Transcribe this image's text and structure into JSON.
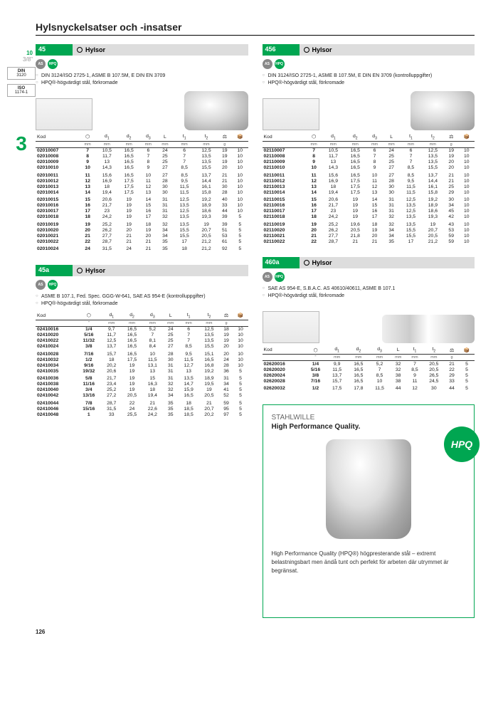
{
  "page_title": "Hylsnyckelsatser och -insatser",
  "page_number": "126",
  "sidebar": {
    "size1": "10",
    "size2": "3/8\"",
    "din": "DIN",
    "din_val": "3120",
    "iso": "ISO",
    "iso_val": "1174-1",
    "section": "3"
  },
  "blocks": [
    {
      "num": "45",
      "title": "Hylsor",
      "badges": [
        "AS",
        "HPQ"
      ],
      "specs": [
        "DIN 3124/ISO 2725-1, ASME B 107.5M, E DIN EN 3709",
        "HPQ®-högvärdigt stål, förkromade"
      ],
      "unit": "mm",
      "img": "short",
      "rows": [
        [
          "02010007",
          "7",
          "10,5",
          "16,5",
          "6",
          "24",
          "6",
          "12,5",
          "19",
          "10"
        ],
        [
          "02010008",
          "8",
          "11,7",
          "16,5",
          "7",
          "25",
          "7",
          "13,5",
          "19",
          "10"
        ],
        [
          "02010009",
          "9",
          "13",
          "16,5",
          "8",
          "25",
          "7",
          "13,5",
          "19",
          "10"
        ],
        [
          "02010010",
          "10",
          "14,3",
          "16,5",
          "9",
          "27",
          "8,5",
          "15,5",
          "20",
          "10"
        ],
        [
          "!02010011",
          "11",
          "15,6",
          "16,5",
          "10",
          "27",
          "8,5",
          "13,7",
          "21",
          "10"
        ],
        [
          "02010012",
          "12",
          "16,9",
          "17,5",
          "11",
          "28",
          "9,5",
          "14,4",
          "21",
          "10"
        ],
        [
          "02010013",
          "13",
          "18",
          "17,5",
          "12",
          "30",
          "11,5",
          "16,1",
          "30",
          "10"
        ],
        [
          "02010014",
          "14",
          "19,4",
          "17,5",
          "13",
          "30",
          "11,5",
          "15,8",
          "28",
          "10"
        ],
        [
          "!02010015",
          "15",
          "20,6",
          "19",
          "14",
          "31",
          "12,5",
          "19,2",
          "40",
          "10"
        ],
        [
          "02010016",
          "16",
          "21,7",
          "19",
          "15",
          "31",
          "13,5",
          "18,9",
          "33",
          "10"
        ],
        [
          "02010017",
          "17",
          "23",
          "19",
          "16",
          "31",
          "12,5",
          "18,6",
          "44",
          "10"
        ],
        [
          "02010018",
          "18",
          "24,2",
          "19",
          "17",
          "32",
          "13,5",
          "19,3",
          "39",
          "5"
        ],
        [
          "!02010019",
          "19",
          "25,2",
          "19",
          "18",
          "32",
          "13,5",
          "19",
          "39",
          "5"
        ],
        [
          "02010020",
          "20",
          "26,2",
          "20",
          "19",
          "34",
          "15,5",
          "20,7",
          "51",
          "5"
        ],
        [
          "02010021",
          "21",
          "27,7",
          "21",
          "20",
          "34",
          "15,5",
          "20,5",
          "53",
          "5"
        ],
        [
          "02010022",
          "22",
          "28,7",
          "21",
          "21",
          "35",
          "17",
          "21,2",
          "61",
          "5"
        ],
        [
          "!02010024",
          "24",
          "31,5",
          "24",
          "21",
          "35",
          "18",
          "21,2",
          "92",
          "5"
        ]
      ]
    },
    {
      "num": "456",
      "title": "Hylsor",
      "badges": [
        "AS",
        "HPQ"
      ],
      "specs": [
        "DIN 3124/ISO 2725-1, ASME B 107.5M, E DIN EN 3709 (kontrolluppgifter)",
        "HPQ®-högvärdigt stål, förkromade"
      ],
      "unit": "mm",
      "img": "short",
      "rows": [
        [
          "02110007",
          "7",
          "10,5",
          "16,5",
          "6",
          "24",
          "6",
          "12,5",
          "19",
          "10"
        ],
        [
          "02110008",
          "8",
          "11,7",
          "16,5",
          "7",
          "25",
          "7",
          "13,5",
          "19",
          "10"
        ],
        [
          "02110009",
          "9",
          "13",
          "16,5",
          "8",
          "25",
          "7",
          "13,5",
          "20",
          "10"
        ],
        [
          "02110010",
          "10",
          "14,3",
          "16,5",
          "9",
          "27",
          "8,5",
          "15,5",
          "20",
          "10"
        ],
        [
          "!02110011",
          "11",
          "15,6",
          "16,5",
          "10",
          "27",
          "8,5",
          "13,7",
          "21",
          "10"
        ],
        [
          "02110012",
          "12",
          "16,9",
          "17,5",
          "11",
          "28",
          "9,5",
          "14,4",
          "21",
          "10"
        ],
        [
          "02110013",
          "13",
          "18",
          "17,5",
          "12",
          "30",
          "11,5",
          "16,1",
          "25",
          "10"
        ],
        [
          "02110014",
          "14",
          "19,4",
          "17,5",
          "13",
          "30",
          "11,5",
          "15,8",
          "29",
          "10"
        ],
        [
          "!02110015",
          "15",
          "20,6",
          "19",
          "14",
          "31",
          "12,5",
          "19,2",
          "30",
          "10"
        ],
        [
          "02110016",
          "16",
          "21,7",
          "19",
          "15",
          "31",
          "13,5",
          "18,9",
          "34",
          "10"
        ],
        [
          "02110017",
          "17",
          "23",
          "19",
          "16",
          "31",
          "12,5",
          "18,6",
          "45",
          "10"
        ],
        [
          "02110018",
          "18",
          "24,2",
          "19",
          "17",
          "32",
          "13,5",
          "19,3",
          "42",
          "10"
        ],
        [
          "!02110019",
          "19",
          "25,2",
          "19,6",
          "18",
          "32",
          "13,5",
          "19",
          "43",
          "10"
        ],
        [
          "02110020",
          "20",
          "26,2",
          "20,5",
          "19",
          "34",
          "15,5",
          "20,7",
          "53",
          "10"
        ],
        [
          "02110021",
          "21",
          "27,7",
          "21,8",
          "20",
          "34",
          "15,5",
          "20,5",
          "59",
          "10"
        ],
        [
          "02110022",
          "22",
          "28,7",
          "21",
          "21",
          "35",
          "17",
          "21,2",
          "59",
          "10"
        ]
      ]
    },
    {
      "num": "45a",
      "title": "Hylsor",
      "badges": [
        "AS",
        "HPQ"
      ],
      "specs": [
        "ASME B 107.1, Fed. Spec. GGG-W-641, SAE AS 954-E (kontrolluppgifter)",
        "HPQ®-högvärdigt stål, förkromade"
      ],
      "unit": "\"",
      "img": "none",
      "rows": [
        [
          "02410016",
          "1/4",
          "9,7",
          "16,5",
          "5,2",
          "24",
          "6",
          "12,5",
          "18",
          "10"
        ],
        [
          "02410020",
          "5/16",
          "11,7",
          "16,5",
          "7",
          "25",
          "7",
          "13,5",
          "19",
          "10"
        ],
        [
          "02410022",
          "11/32",
          "12,5",
          "16,5",
          "8,1",
          "25",
          "7",
          "13,5",
          "19",
          "10"
        ],
        [
          "02410024",
          "3/8",
          "13,7",
          "16,5",
          "8,4",
          "27",
          "8,5",
          "15,5",
          "20",
          "10"
        ],
        [
          "!02410028",
          "7/16",
          "15,7",
          "16,5",
          "10",
          "28",
          "9,5",
          "15,1",
          "20",
          "10"
        ],
        [
          "02410032",
          "1/2",
          "18",
          "17,5",
          "11,5",
          "30",
          "11,5",
          "16,5",
          "24",
          "10"
        ],
        [
          "02410034",
          "9/16",
          "20,2",
          "19",
          "13,1",
          "31",
          "12,7",
          "16,8",
          "28",
          "10"
        ],
        [
          "02410035",
          "19/32",
          "20,6",
          "19",
          "13",
          "31",
          "13",
          "19,2",
          "36",
          "5"
        ],
        [
          "!02410036",
          "5/8",
          "21,7",
          "19",
          "15",
          "31",
          "13,5",
          "18,9",
          "31",
          "5"
        ],
        [
          "02410038",
          "11/16",
          "23,4",
          "19",
          "16,3",
          "32",
          "14,7",
          "19,5",
          "34",
          "5"
        ],
        [
          "02410040",
          "3/4",
          "25,2",
          "19",
          "18",
          "32",
          "15,9",
          "19",
          "41",
          "5"
        ],
        [
          "02410042",
          "13/16",
          "27,2",
          "20,5",
          "19,4",
          "34",
          "16,5",
          "20,5",
          "52",
          "5"
        ],
        [
          "!02410044",
          "7/8",
          "28,7",
          "22",
          "21",
          "35",
          "18",
          "21",
          "59",
          "5"
        ],
        [
          "02410046",
          "15/16",
          "31,5",
          "24",
          "22,6",
          "35",
          "18,5",
          "20,7",
          "95",
          "5"
        ],
        [
          "02410048",
          "1",
          "33",
          "25,5",
          "24,2",
          "35",
          "18,5",
          "20,2",
          "97",
          "5"
        ]
      ]
    },
    {
      "num": "460a",
      "title": "Hylsor",
      "badges": [
        "AS",
        "HPQ"
      ],
      "specs": [
        "SAE AS 954-E, S.B.A.C. AS 40610/40611, ASME B 107.1",
        "HPQ®-högvärdigt stål, förkromade"
      ],
      "unit": "\"",
      "img": "long",
      "rows": [
        [
          "02620016",
          "1/4",
          "9,9",
          "16,5",
          "5,2",
          "32",
          "7",
          "20,5",
          "21",
          "5"
        ],
        [
          "02620020",
          "5/16",
          "11,5",
          "16,5",
          "7",
          "32",
          "8,5",
          "20,5",
          "22",
          "5"
        ],
        [
          "02620024",
          "3/8",
          "13,7",
          "16,5",
          "8,5",
          "38",
          "9",
          "26,5",
          "29",
          "5"
        ],
        [
          "02620028",
          "7/16",
          "15,7",
          "16,5",
          "10",
          "38",
          "11",
          "24,5",
          "33",
          "5"
        ],
        [
          "!02620032",
          "1/2",
          "17,5",
          "17,8",
          "11,5",
          "44",
          "12",
          "30",
          "44",
          "5"
        ]
      ]
    }
  ],
  "hpq": {
    "brand": "STAHLWILLE",
    "tagline": "High Performance Quality.",
    "logo": "HPQ",
    "text": "High Performance Quality (HPQ®) högpresterande stål – extremt belastningsbart men ändå tunt och perfekt för arbeten där utrymmet är begränsat."
  }
}
